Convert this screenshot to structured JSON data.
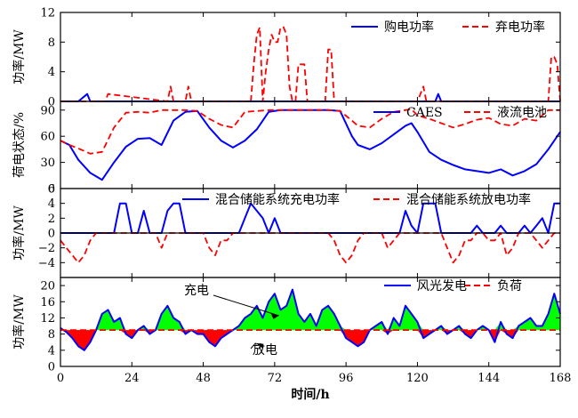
{
  "chart_data": [
    {
      "type": "line",
      "ylabel": "功率/MW",
      "ylim": [
        0,
        12
      ],
      "yticks": [
        "0",
        "4",
        "8",
        "12"
      ],
      "x": [
        0,
        6,
        9,
        10,
        15,
        16,
        36,
        37,
        38,
        40,
        42,
        43,
        44,
        64,
        65,
        66,
        67,
        68,
        69,
        70,
        71,
        72,
        73,
        74,
        75,
        76,
        77,
        78,
        79,
        80,
        81,
        82,
        83,
        84,
        85,
        86,
        87,
        88,
        89,
        90,
        91,
        92,
        93,
        94,
        95,
        120,
        121,
        122,
        123,
        125,
        126,
        127,
        128,
        164,
        165,
        166,
        167,
        168
      ],
      "series": [
        {
          "name": "购电功率",
          "color": "#0000ff",
          "style": "solid",
          "values": [
            0,
            0,
            1,
            0,
            0,
            0,
            0,
            0,
            0,
            0,
            0,
            0,
            0,
            0,
            0,
            0,
            0,
            0,
            0,
            0,
            0,
            0,
            0,
            0,
            0,
            0,
            0,
            0,
            0,
            0,
            0,
            0,
            0,
            0,
            0,
            0,
            0,
            0,
            0,
            0,
            0,
            0,
            0,
            0,
            0,
            0,
            0,
            0,
            0,
            0,
            0,
            1,
            0,
            0,
            0,
            0,
            0,
            0
          ]
        },
        {
          "name": "弃电功率",
          "color": "#ff0000",
          "style": "dashed",
          "values": [
            0,
            0,
            0,
            0,
            0,
            1,
            0,
            2,
            0,
            0,
            0,
            2,
            0,
            0,
            5,
            9,
            10,
            0,
            4,
            7,
            9,
            8,
            8,
            10,
            10,
            9,
            2,
            0,
            0,
            5,
            5,
            5,
            0,
            0,
            0,
            0,
            0,
            0,
            0,
            7,
            7,
            0,
            0,
            0,
            0,
            0,
            1,
            2,
            0,
            0,
            0,
            0,
            0,
            0,
            6,
            6,
            5,
            0
          ]
        }
      ],
      "legend_position": "top-right"
    },
    {
      "type": "line",
      "ylabel": "荷电状态/%",
      "ylim": [
        0,
        100
      ],
      "yticks": [
        "0",
        "30",
        "60",
        "90"
      ],
      "x": [
        0,
        3,
        6,
        10,
        14,
        18,
        22,
        26,
        30,
        34,
        38,
        42,
        46,
        50,
        54,
        58,
        62,
        66,
        70,
        74,
        78,
        82,
        86,
        90,
        94,
        98,
        100,
        104,
        108,
        112,
        116,
        118,
        120,
        124,
        128,
        132,
        136,
        140,
        144,
        148,
        152,
        156,
        160,
        164,
        168
      ],
      "series": [
        {
          "name": "CAES",
          "color": "#0000ff",
          "style": "solid",
          "values": [
            55,
            50,
            33,
            18,
            10,
            30,
            48,
            57,
            58,
            50,
            78,
            88,
            89,
            70,
            55,
            47,
            55,
            68,
            88,
            90,
            90,
            90,
            90,
            90,
            89,
            60,
            50,
            45,
            52,
            62,
            72,
            75,
            65,
            42,
            33,
            27,
            22,
            20,
            18,
            22,
            15,
            20,
            28,
            45,
            65
          ]
        },
        {
          "name": "液流电池",
          "color": "#ff0000",
          "style": "dashed",
          "values": [
            55,
            50,
            46,
            40,
            42,
            70,
            87,
            88,
            87,
            90,
            90,
            90,
            89,
            80,
            73,
            70,
            88,
            89,
            90,
            90,
            90,
            90,
            90,
            90,
            89,
            78,
            72,
            70,
            80,
            88,
            90,
            91,
            84,
            80,
            75,
            70,
            74,
            79,
            81,
            74,
            72,
            80,
            78,
            90,
            90
          ]
        }
      ],
      "legend_position": "top-right"
    },
    {
      "type": "line",
      "ylabel": "功率/MW",
      "ylim": [
        -6,
        6
      ],
      "yticks": [
        "−4",
        "−2",
        "0",
        "2",
        "4",
        "6"
      ],
      "x": [
        0,
        2,
        4,
        6,
        8,
        10,
        12,
        14,
        16,
        18,
        20,
        22,
        24,
        26,
        28,
        30,
        32,
        34,
        36,
        38,
        40,
        42,
        44,
        46,
        48,
        50,
        52,
        54,
        56,
        58,
        60,
        62,
        64,
        66,
        68,
        70,
        72,
        74,
        76,
        78,
        80,
        82,
        84,
        86,
        88,
        90,
        92,
        94,
        96,
        98,
        100,
        102,
        104,
        106,
        108,
        110,
        112,
        114,
        116,
        118,
        120,
        122,
        124,
        126,
        128,
        130,
        132,
        134,
        136,
        138,
        140,
        142,
        144,
        146,
        148,
        150,
        152,
        154,
        156,
        158,
        160,
        162,
        164,
        166,
        168
      ],
      "series": [
        {
          "name": "混合储能系统充电功率",
          "color": "#0000ff",
          "style": "solid",
          "values": [
            0,
            0,
            0,
            0,
            0,
            0,
            0,
            0,
            0,
            0,
            4,
            4,
            0,
            0,
            3,
            0,
            0,
            0,
            3,
            4,
            4,
            0,
            0,
            0,
            0,
            0,
            0,
            0,
            0,
            0,
            0,
            2,
            4,
            3,
            2,
            0,
            2,
            0,
            0,
            0,
            0,
            0,
            0,
            0,
            0,
            0,
            0,
            0,
            0,
            0,
            0,
            0,
            0,
            0,
            0,
            0,
            0,
            0,
            3,
            1,
            0,
            4,
            4,
            4,
            0,
            0,
            0,
            0,
            0,
            0,
            1,
            0,
            0,
            0,
            1,
            0,
            0,
            0,
            1,
            0,
            1,
            2,
            0,
            4,
            4
          ]
        },
        {
          "name": "混合储能系统放电功率",
          "color": "#ff0000",
          "style": "dashed",
          "values": [
            -1,
            -2,
            -3,
            -4,
            -3,
            -1,
            0,
            0,
            0,
            0,
            0,
            0,
            0,
            0,
            0,
            0,
            0,
            -2,
            0,
            0,
            0,
            0,
            0,
            0,
            0,
            -2,
            -3,
            -1,
            -1,
            0,
            0,
            0,
            0,
            0,
            0,
            0,
            0,
            0,
            0,
            0,
            0,
            0,
            0,
            0,
            0,
            0,
            -1,
            -3,
            -4,
            -3,
            -1,
            0,
            0,
            0,
            0,
            -2,
            -1,
            0,
            0,
            0,
            0,
            0,
            0,
            0,
            0,
            -2,
            -4,
            -3,
            -1,
            -1,
            0,
            0,
            -1,
            -1,
            0,
            -3,
            -2,
            0,
            0,
            0,
            -1,
            -2,
            -1,
            0,
            0
          ]
        }
      ],
      "legend_position": "top"
    },
    {
      "type": "line",
      "ylabel": "功率/MW",
      "xlabel": "时间/h",
      "ylim": [
        0,
        22
      ],
      "yticks": [
        "0",
        "4",
        "8",
        "12",
        "16",
        "20"
      ],
      "xticks": [
        "0",
        "24",
        "48",
        "72",
        "96",
        "120",
        "144",
        "168"
      ],
      "x": [
        0,
        2,
        4,
        6,
        8,
        10,
        12,
        14,
        16,
        18,
        20,
        22,
        24,
        26,
        28,
        30,
        32,
        34,
        36,
        38,
        40,
        42,
        44,
        46,
        48,
        50,
        52,
        54,
        56,
        58,
        60,
        62,
        64,
        66,
        68,
        70,
        72,
        74,
        76,
        78,
        80,
        82,
        84,
        86,
        88,
        90,
        92,
        94,
        96,
        98,
        100,
        102,
        104,
        106,
        108,
        110,
        112,
        114,
        116,
        118,
        120,
        122,
        124,
        126,
        128,
        130,
        132,
        134,
        136,
        138,
        140,
        142,
        144,
        146,
        148,
        150,
        152,
        154,
        156,
        158,
        160,
        162,
        164,
        166,
        168
      ],
      "series": [
        {
          "name": "风光发电",
          "color": "#0000ff",
          "style": "solid",
          "values": [
            9.5,
            8.5,
            7,
            5,
            4,
            6,
            9,
            13,
            14,
            11,
            12,
            8,
            7,
            9,
            10,
            8,
            9,
            13,
            15,
            12,
            11,
            8,
            9,
            8,
            8,
            6,
            5,
            7,
            8,
            9,
            10,
            12,
            13,
            15,
            12,
            16,
            18,
            14,
            15,
            19,
            13,
            11,
            13,
            10,
            14,
            15,
            13,
            10,
            7,
            6,
            5,
            6,
            9,
            10,
            11,
            8,
            12,
            10,
            15,
            13,
            11,
            7,
            8,
            9,
            10,
            8,
            9,
            10,
            8,
            7,
            9,
            10,
            9,
            6,
            11,
            8,
            7,
            10,
            11,
            12,
            10,
            10,
            13,
            18,
            13
          ]
        },
        {
          "name": "负荷",
          "color": "#ff0000",
          "style": "dashed",
          "values": [
            9,
            9,
            9,
            9,
            9,
            9,
            9,
            9,
            9,
            9,
            9,
            9,
            9,
            9,
            9,
            9,
            9,
            9,
            9,
            9,
            9,
            9,
            9,
            9,
            9,
            9,
            9,
            9,
            9,
            9,
            9,
            9,
            9,
            9,
            9,
            9,
            9,
            9,
            9,
            9,
            9,
            9,
            9,
            9,
            9,
            9,
            9,
            9,
            9,
            9,
            9,
            9,
            9,
            9,
            9,
            9,
            9,
            9,
            9,
            9,
            9,
            9,
            9,
            9,
            9,
            9,
            9,
            9,
            9,
            9,
            9,
            9,
            9,
            9,
            9,
            9,
            9,
            9,
            9,
            9,
            9,
            9,
            9,
            9,
            9
          ]
        }
      ],
      "fill_above_color": "#00ff00",
      "fill_below_color": "#ff0000",
      "annotations": [
        {
          "text": "充电",
          "at_x": 74,
          "at_y": 13
        },
        {
          "text": "放电",
          "at_x": 65,
          "at_y": 6
        }
      ],
      "legend_position": "top-right"
    }
  ]
}
